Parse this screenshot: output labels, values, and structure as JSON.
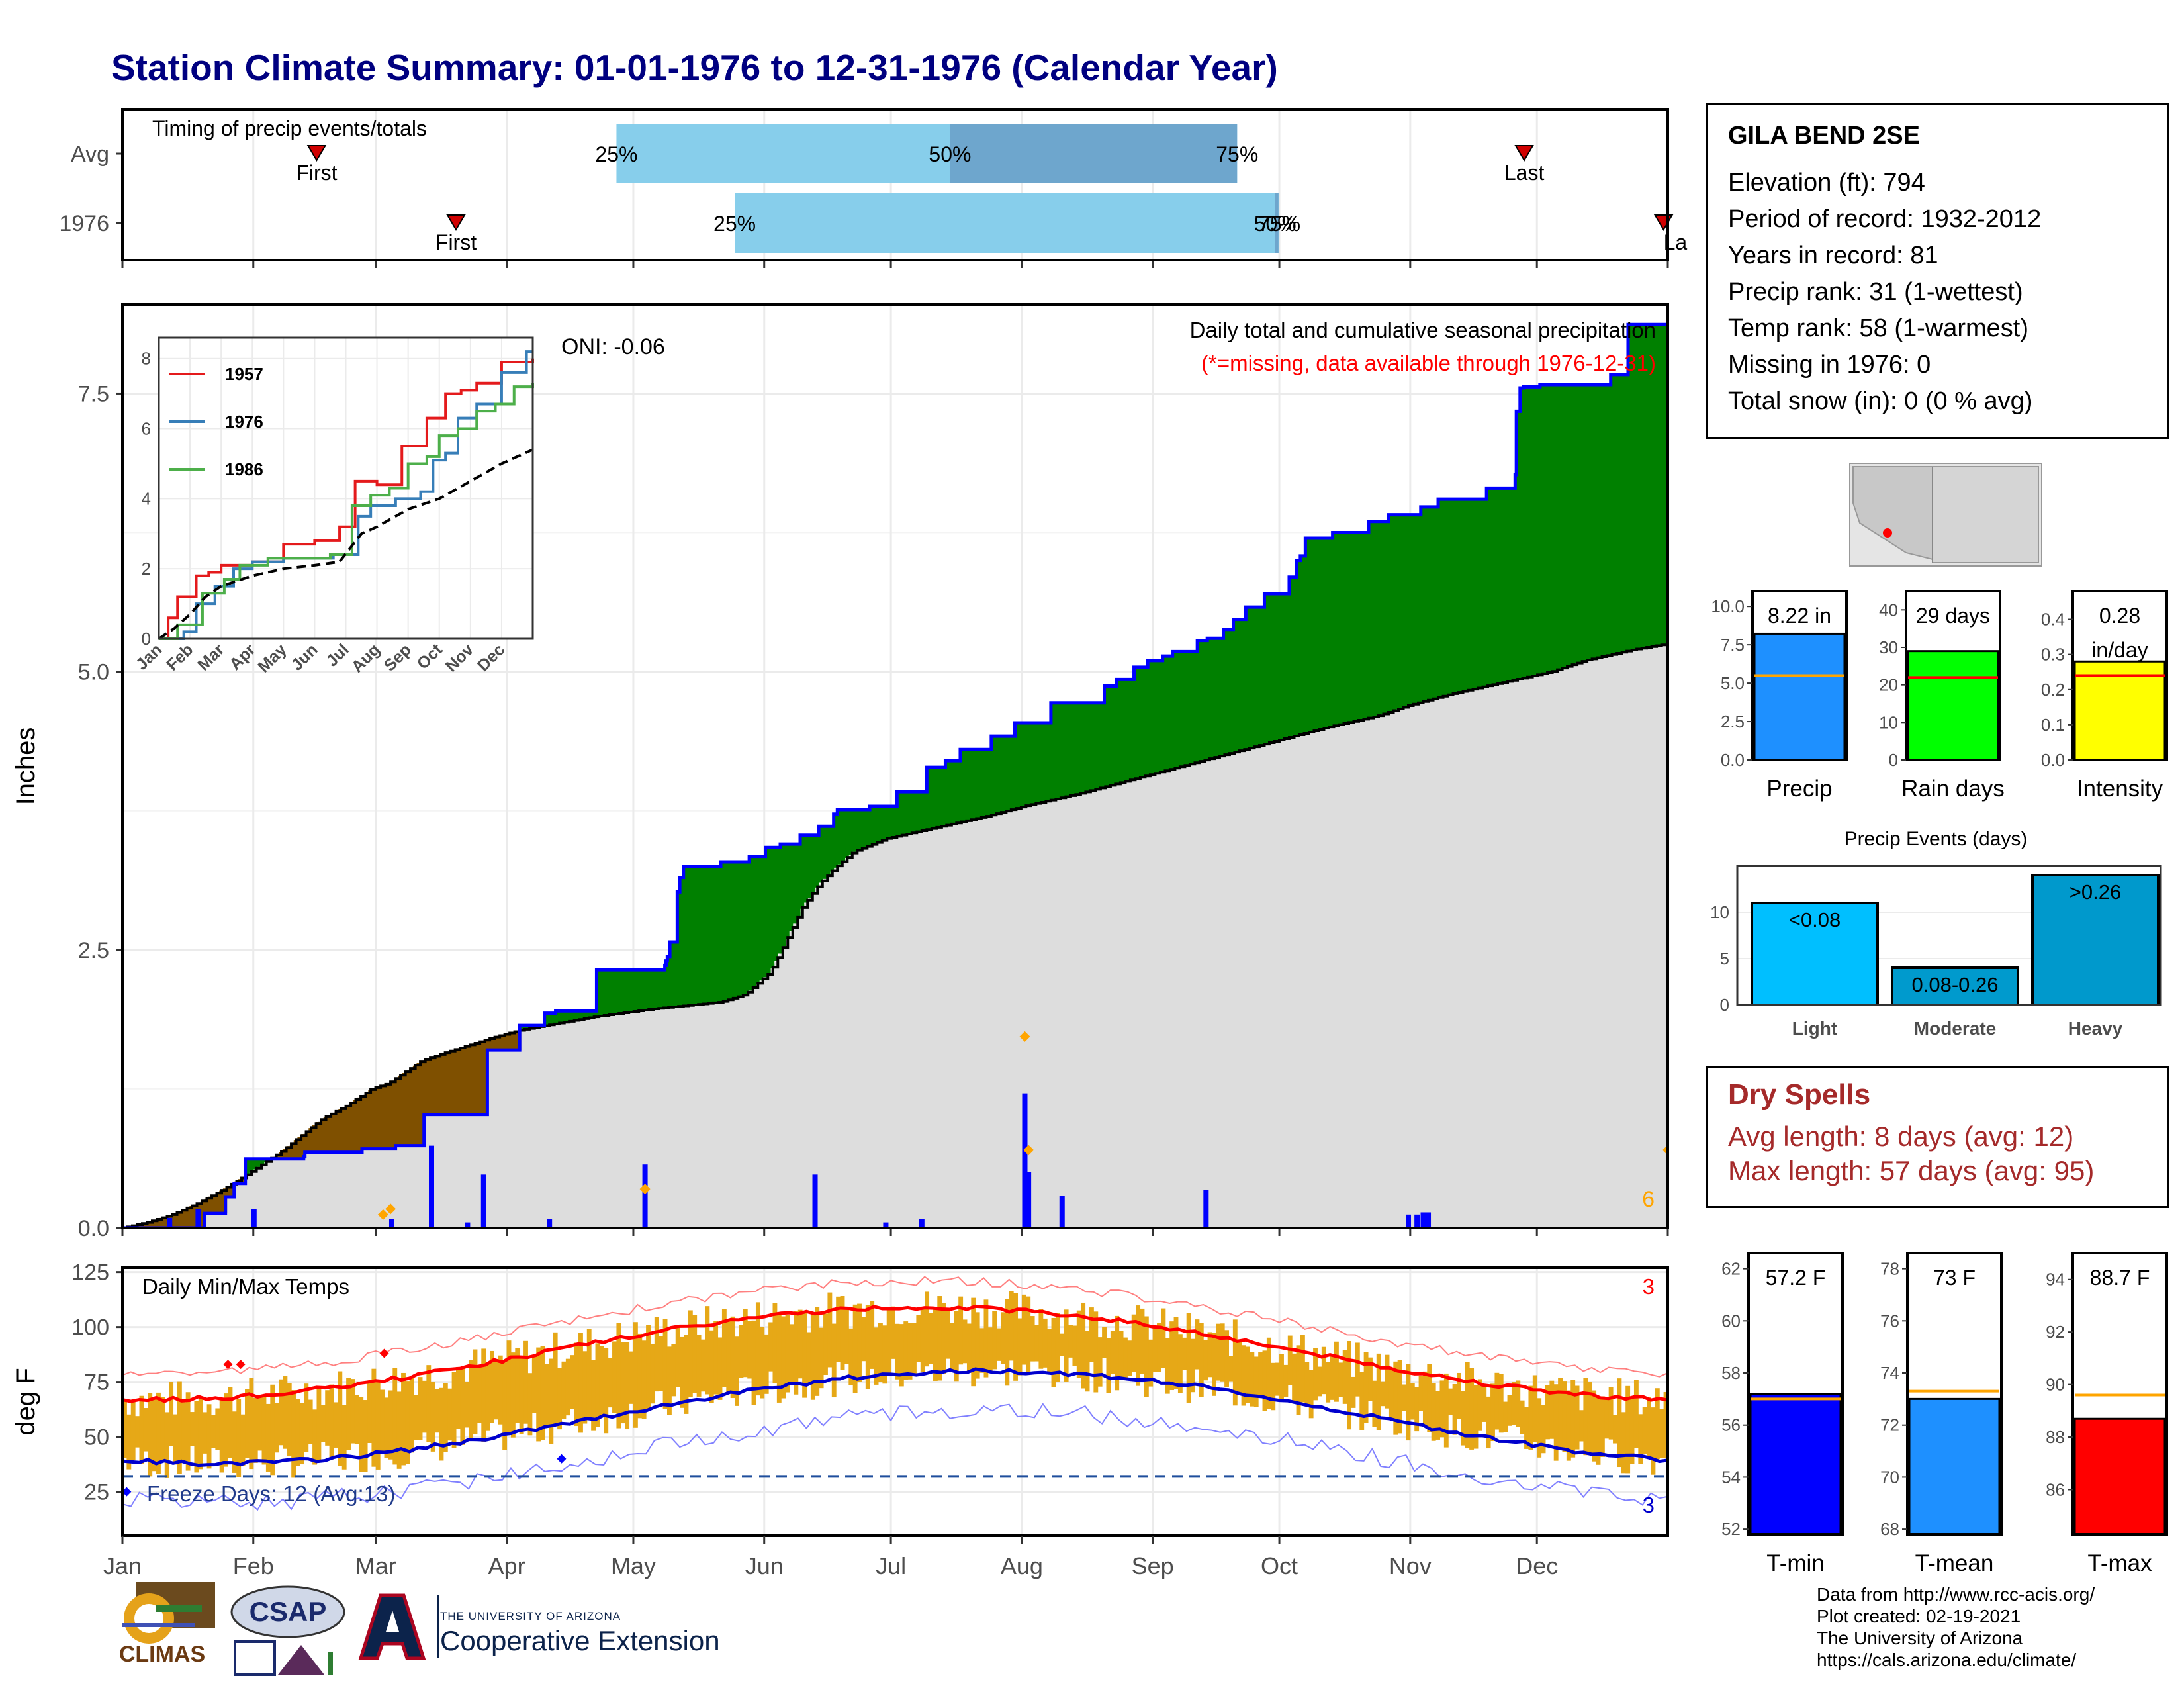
{
  "title": "Station Climate Summary: 01-01-1976 to 12-31-1976 (Calendar Year)",
  "timing": {
    "label": "Timing of precip events/totals",
    "rows": [
      {
        "name": "Avg",
        "first_doy": 46,
        "last_doy": 332,
        "p25_doy": 117,
        "p50_doy": 196,
        "p75_doy": 264
      },
      {
        "name": "1976",
        "first_doy": 79,
        "last_doy": 365,
        "p25_doy": 145,
        "p50_doy": 273,
        "p75_doy": 274
      }
    ],
    "labels": {
      "first": "First",
      "last": "Last",
      "last_clipped": "La",
      "p25": "25%",
      "p50": "50%",
      "p75": "75%",
      "p75_overlap": "75%"
    },
    "colors": {
      "light": "#87ceeb",
      "dark": "#6ea6cd",
      "marker": "#d00000"
    }
  },
  "precip_panel": {
    "ylabel": "Inches",
    "yticks": [
      "0.0",
      "2.5",
      "5.0",
      "7.5"
    ],
    "title": "Daily total and cumulative seasonal precipitation",
    "missing_note": "(*=missing, data available through 1976-12-31)",
    "oni": "ONI: -0.06",
    "missing_count": "6"
  },
  "inset": {
    "yticks": [
      "0",
      "2",
      "4",
      "6",
      "8"
    ],
    "months": [
      "Jan",
      "Feb",
      "Mar",
      "Apr",
      "May",
      "Jun",
      "Jul",
      "Aug",
      "Sep",
      "Oct",
      "Nov",
      "Dec"
    ],
    "legend": [
      {
        "name": "1957",
        "color": "#e41a1c"
      },
      {
        "name": "1976",
        "color": "#377eb8"
      },
      {
        "name": "1986",
        "color": "#4daf4a"
      }
    ]
  },
  "temp_panel": {
    "ylabel": "deg F",
    "yticks": [
      "25",
      "50",
      "75",
      "100",
      "125"
    ],
    "label": "Daily Min/Max Temps",
    "freeze_days": "Freeze Days: 12 (Avg:13)",
    "max_count": "3",
    "min_count": "3"
  },
  "months": [
    "Jan",
    "Feb",
    "Mar",
    "Apr",
    "May",
    "Jun",
    "Jul",
    "Aug",
    "Sep",
    "Oct",
    "Nov",
    "Dec"
  ],
  "station": {
    "name": "GILA BEND 2SE",
    "lines": [
      "Elevation (ft): 794",
      "Period of record: 1932-2012",
      "Years in record: 81",
      "Precip rank: 31 (1-wettest)",
      "Temp rank: 58 (1-warmest)",
      "Missing in 1976: 0",
      "Total snow (in): 0 (0 % avg)"
    ]
  },
  "dry_spells": {
    "title": "Dry Spells",
    "avg": "Avg length: 8 days (avg: 12)",
    "max": "Max length: 57 days (avg: 95)"
  },
  "credits": [
    "Data from http://www.rcc-acis.org/",
    "Plot created: 02-19-2021",
    "The University of Arizona",
    "https://cals.arizona.edu/climate/"
  ],
  "logos": {
    "climas": "CLIMAS",
    "csap": "CSAP",
    "coop_small": "THE UNIVERSITY OF ARIZONA",
    "coop_big": "Cooperative Extension"
  },
  "chart_data": [
    {
      "type": "area",
      "title": "Daily total and cumulative seasonal precipitation",
      "ylabel": "Inches",
      "ylim": [
        0,
        8.3
      ],
      "x_unit": "day of year 1976",
      "series": [
        {
          "name": "1976",
          "color": "#0000ff",
          "steps": [
            [
              0,
              0
            ],
            [
              66,
              0.13
            ],
            [
              83,
              0.28
            ],
            [
              90,
              0.4
            ],
            [
              99,
              0.62
            ],
            [
              143,
              0.62
            ],
            [
              146,
              0.64
            ],
            [
              147,
              0.68
            ],
            [
              162,
              0.68
            ],
            [
              193,
              0.71
            ],
            [
              220,
              0.74
            ],
            [
              243,
              1.02
            ],
            [
              294,
              1.6
            ],
            [
              320,
              1.82
            ],
            [
              340,
              1.93
            ],
            [
              349,
              1.95
            ],
            [
              382,
              2.32
            ],
            [
              436,
              2.32
            ],
            [
              437,
              2.36
            ],
            [
              438,
              2.4
            ],
            [
              439,
              2.44
            ],
            [
              441,
              2.57
            ],
            [
              447,
              3.02
            ],
            [
              449,
              3.15
            ],
            [
              452,
              3.25
            ],
            [
              482,
              3.29
            ],
            [
              505,
              3.34
            ],
            [
              518,
              3.42
            ],
            [
              530,
              3.45
            ],
            [
              546,
              3.53
            ],
            [
              561,
              3.61
            ],
            [
              573,
              3.72
            ],
            [
              576,
              3.76
            ],
            [
              602,
              3.79
            ],
            [
              624,
              3.92
            ],
            [
              648,
              4.14
            ],
            [
              663,
              4.2
            ],
            [
              675,
              4.3
            ],
            [
              700,
              4.42
            ],
            [
              719,
              4.54
            ],
            [
              748,
              4.72
            ],
            [
              791,
              4.87
            ],
            [
              801,
              4.93
            ],
            [
              815,
              5.04
            ],
            [
              826,
              5.1
            ],
            [
              838,
              5.14
            ],
            [
              846,
              5.18
            ],
            [
              866,
              5.28
            ],
            [
              874,
              5.3
            ],
            [
              887,
              5.38
            ],
            [
              895,
              5.47
            ],
            [
              905,
              5.58
            ],
            [
              920,
              5.7
            ],
            [
              940,
              5.85
            ],
            [
              946,
              6.0
            ],
            [
              949,
              6.04
            ],
            [
              953,
              6.2
            ],
            [
              975,
              6.25
            ],
            [
              1004,
              6.35
            ],
            [
              1020,
              6.41
            ],
            [
              1046,
              6.48
            ],
            [
              1060,
              6.55
            ],
            [
              1099,
              6.65
            ],
            [
              1122,
              6.77
            ],
            [
              1123,
              7.34
            ],
            [
              1126,
              7.55
            ],
            [
              1129,
              7.56
            ],
            [
              1142,
              7.58
            ],
            [
              1199,
              7.67
            ],
            [
              1213,
              8.12
            ],
            [
              1245,
              8.22
            ]
          ]
        },
        {
          "name": "Avg",
          "color": "#000000",
          "points": [
            [
              0,
              0
            ],
            [
              15,
              0.05
            ],
            [
              30,
              0.12
            ],
            [
              45,
              0.22
            ],
            [
              60,
              0.34
            ],
            [
              75,
              0.48
            ],
            [
              85,
              0.58
            ],
            [
              95,
              0.68
            ],
            [
              110,
              0.86
            ],
            [
              120,
              0.98
            ],
            [
              135,
              1.1
            ],
            [
              150,
              1.25
            ],
            [
              160,
              1.3
            ],
            [
              165,
              1.35
            ],
            [
              180,
              1.5
            ],
            [
              195,
              1.58
            ],
            [
              210,
              1.65
            ],
            [
              225,
              1.72
            ],
            [
              240,
              1.78
            ],
            [
              255,
              1.82
            ],
            [
              270,
              1.86
            ],
            [
              285,
              1.9
            ],
            [
              300,
              1.93
            ],
            [
              320,
              1.97
            ],
            [
              340,
              2.0
            ],
            [
              360,
              2.03
            ],
            [
              375,
              2.1
            ],
            [
              390,
              2.3
            ],
            [
              400,
              2.6
            ],
            [
              410,
              2.9
            ],
            [
              420,
              3.1
            ],
            [
              430,
              3.25
            ],
            [
              440,
              3.38
            ],
            [
              460,
              3.5
            ],
            [
              490,
              3.6
            ],
            [
              520,
              3.7
            ],
            [
              545,
              3.8
            ],
            [
              575,
              3.9
            ],
            [
              600,
              4.0
            ],
            [
              625,
              4.1
            ],
            [
              650,
              4.2
            ],
            [
              675,
              4.3
            ],
            [
              700,
              4.4
            ],
            [
              725,
              4.5
            ],
            [
              755,
              4.6
            ],
            [
              775,
              4.7
            ],
            [
              800,
              4.8
            ],
            [
              830,
              4.9
            ],
            [
              860,
              5.0
            ],
            [
              880,
              5.1
            ],
            [
              910,
              5.2
            ],
            [
              930,
              5.25
            ]
          ]
        }
      ],
      "daily_bars_inches": [
        [
          38,
          0.09
        ],
        [
          61,
          0.17
        ],
        [
          106,
          0.17
        ],
        [
          217,
          0.08
        ],
        [
          249,
          0.74
        ],
        [
          278,
          0.05
        ],
        [
          291,
          0.48
        ],
        [
          344,
          0.08
        ],
        [
          421,
          0.57
        ],
        [
          558,
          0.48
        ],
        [
          615,
          0.05
        ],
        [
          644,
          0.08
        ],
        [
          727,
          1.21
        ],
        [
          730,
          0.5
        ],
        [
          757,
          0.29
        ],
        [
          873,
          0.34
        ],
        [
          1036,
          0.12
        ],
        [
          1043,
          0.12
        ],
        [
          1048,
          0.14
        ],
        [
          1052,
          0.14
        ]
      ]
    },
    {
      "type": "line",
      "title": "Daily Min/Max Temps",
      "ylabel": "deg F",
      "ylim": [
        5,
        127
      ],
      "freeze_threshold_F": 32,
      "series": [
        {
          "name": "Avg max",
          "color": "#ff0000",
          "jan": 67,
          "peak": 109,
          "peak_doy": 190
        },
        {
          "name": "Avg min",
          "color": "#0000cd",
          "jan": 38,
          "peak": 80,
          "peak_doy": 205
        },
        {
          "name": "Record max",
          "color": "#ff8080",
          "jan": 82,
          "peak": 121
        },
        {
          "name": "Record min",
          "color": "#8080ff",
          "jan": 20,
          "peak": 65
        }
      ]
    },
    {
      "type": "bar",
      "title": "Precip",
      "categories": [
        "Precip"
      ],
      "values": [
        8.22
      ],
      "value_label": "8.22 in",
      "avg": 5.5,
      "ylim": [
        0,
        11
      ],
      "yticks": [
        "0.0",
        "2.5",
        "5.0",
        "7.5",
        "10.0"
      ],
      "color": "#1e90ff"
    },
    {
      "type": "bar",
      "title": "Rain days",
      "categories": [
        "Rain days"
      ],
      "values": [
        29
      ],
      "value_label": "29 days",
      "avg": 22,
      "ylim": [
        0,
        45
      ],
      "yticks": [
        "0",
        "10",
        "20",
        "30",
        "40"
      ],
      "color": "#00ff00"
    },
    {
      "type": "bar",
      "title": "Intensity",
      "categories": [
        "Intensity"
      ],
      "values": [
        0.28
      ],
      "value_label": "0.28 in/day",
      "value_lines": [
        "0.28",
        "in/day"
      ],
      "avg": 0.24,
      "ylim": [
        0,
        0.48
      ],
      "yticks": [
        "0.0",
        "0.1",
        "0.2",
        "0.3",
        "0.4"
      ],
      "color": "#ffff00"
    },
    {
      "type": "bar",
      "title": "Precip Events (days)",
      "categories": [
        "Light",
        "Moderate",
        "Heavy"
      ],
      "values": [
        11,
        4,
        14
      ],
      "bar_labels": [
        "<0.08",
        "0.08-0.26",
        ">0.26"
      ],
      "colors": [
        "#00bfff",
        "#009acd",
        "#0099cc"
      ],
      "ylim": [
        0,
        15
      ],
      "yticks": [
        "0",
        "5",
        "10"
      ]
    },
    {
      "type": "bar",
      "title": "T-min",
      "categories": [
        "T-min"
      ],
      "values": [
        57.2
      ],
      "value_label": "57.2 F",
      "avg": 57,
      "ylim": [
        51.8,
        62.6
      ],
      "yticks": [
        "52",
        "54",
        "56",
        "58",
        "60",
        "62"
      ],
      "color": "#0000ff"
    },
    {
      "type": "bar",
      "title": "T-mean",
      "categories": [
        "T-mean"
      ],
      "values": [
        73
      ],
      "value_label": "73 F",
      "avg": 73.3,
      "ylim": [
        67.8,
        78.6
      ],
      "yticks": [
        "68",
        "70",
        "72",
        "74",
        "76",
        "78"
      ],
      "color": "#1e90ff"
    },
    {
      "type": "bar",
      "title": "T-max",
      "categories": [
        "T-max"
      ],
      "values": [
        88.7
      ],
      "value_label": "88.7 F",
      "avg": 89.6,
      "ylim": [
        84.3,
        95
      ],
      "yticks": [
        "86",
        "88",
        "90",
        "92",
        "94"
      ],
      "color": "#ff0000"
    }
  ]
}
